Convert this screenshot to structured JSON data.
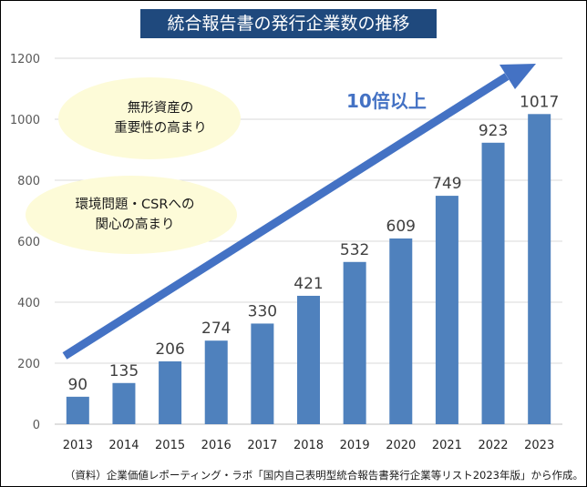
{
  "chart_data": {
    "type": "bar",
    "title": "統合報告書の発行企業数の推移",
    "categories": [
      "2013",
      "2014",
      "2015",
      "2016",
      "2017",
      "2018",
      "2019",
      "2020",
      "2021",
      "2022",
      "2023"
    ],
    "values": [
      90,
      135,
      206,
      274,
      330,
      421,
      532,
      609,
      749,
      923,
      1017
    ],
    "ylim": [
      0,
      1200
    ],
    "yticks": [
      "0",
      "200",
      "400",
      "600",
      "800",
      "1000",
      "1200"
    ],
    "grid": true,
    "xlabel": "",
    "ylabel": "",
    "bar_color": "#4f81bd",
    "annotations": {
      "arrow_label": "10倍以上",
      "note1_line1": "無形資産の",
      "note1_line2": "重要性の高まり",
      "note2_line1": "環境問題・CSRへの",
      "note2_line2": "関心の高まり"
    },
    "source": "（資料）企業価値レポーティング・ラボ「国内自己表明型統合報告書発行企業等リスト2023年版」から作成。"
  },
  "colors": {
    "title_bg": "#1f497d",
    "arrow": "#4472c4",
    "ellipse": "#fdfbd8"
  }
}
